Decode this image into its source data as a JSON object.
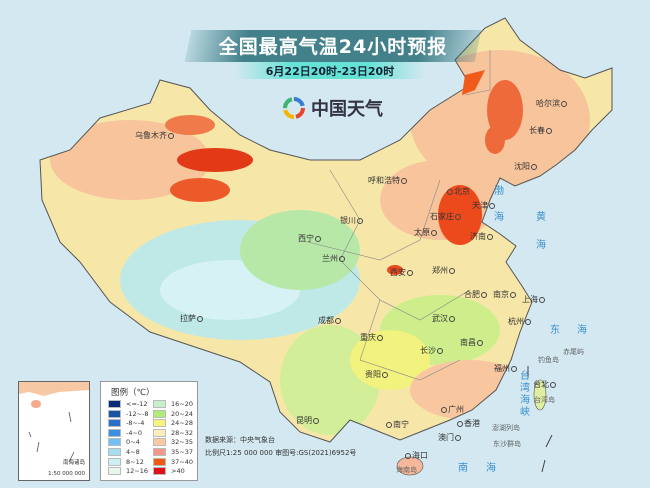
{
  "header": {
    "title": "全国最高气温24小时预报",
    "subtitle": "6月22日20时-23日20时"
  },
  "logo": {
    "text": "中国天气",
    "icon": "china-weather-swirl-logo"
  },
  "cities": [
    "乌鲁木齐",
    "拉萨",
    "西宁",
    "兰州",
    "银川",
    "呼和浩特",
    "北京",
    "天津",
    "石家庄",
    "太原",
    "济南",
    "郑州",
    "西安",
    "成都",
    "重庆",
    "贵阳",
    "昆明",
    "南宁",
    "广州",
    "香港",
    "澳门",
    "海口",
    "长沙",
    "南昌",
    "武汉",
    "合肥",
    "南京",
    "上海",
    "杭州",
    "福州",
    "台北",
    "哈尔滨",
    "长春",
    "沈阳"
  ],
  "seas": [
    "渤",
    "海",
    "黄",
    "海",
    "东",
    "海",
    "台",
    "湾",
    "海",
    "峡",
    "南",
    "海"
  ],
  "islands": [
    "钓鱼岛",
    "赤尾屿",
    "台湾岛",
    "澎湖列岛",
    "东沙群岛",
    "海南岛"
  ],
  "legend": {
    "title": "图例（℃）",
    "items": [
      {
        "label": "<=-12",
        "color": "#0a2d7a"
      },
      {
        "label": "-12~-8",
        "color": "#1a55a6"
      },
      {
        "label": "-8~-4",
        "color": "#2a6fcc"
      },
      {
        "label": "-4~0",
        "color": "#3c8fe0"
      },
      {
        "label": "0~4",
        "color": "#74c0f2"
      },
      {
        "label": "4~8",
        "color": "#a6def0"
      },
      {
        "label": "8~12",
        "color": "#cdf0f4"
      },
      {
        "label": "12~16",
        "color": "#e9f7ea"
      },
      {
        "label": "16~20",
        "color": "#c6f0c8"
      },
      {
        "label": "20~24",
        "color": "#b2ec78"
      },
      {
        "label": "24~28",
        "color": "#f6f47c"
      },
      {
        "label": "28~32",
        "color": "#fbefbe"
      },
      {
        "label": "32~35",
        "color": "#f9c9a2"
      },
      {
        "label": "35~37",
        "color": "#f59a8a"
      },
      {
        "label": "37~40",
        "color": "#f25a12"
      },
      {
        "label": ">40",
        "color": "#e0101a"
      }
    ]
  },
  "inset": {
    "label": "南海诸岛",
    "scale": "1:50 000 000"
  },
  "footer": {
    "source": "数据来源：中央气象台",
    "scale": "比例尺1:25 000 000   审图号:GS(2021)6952号"
  }
}
